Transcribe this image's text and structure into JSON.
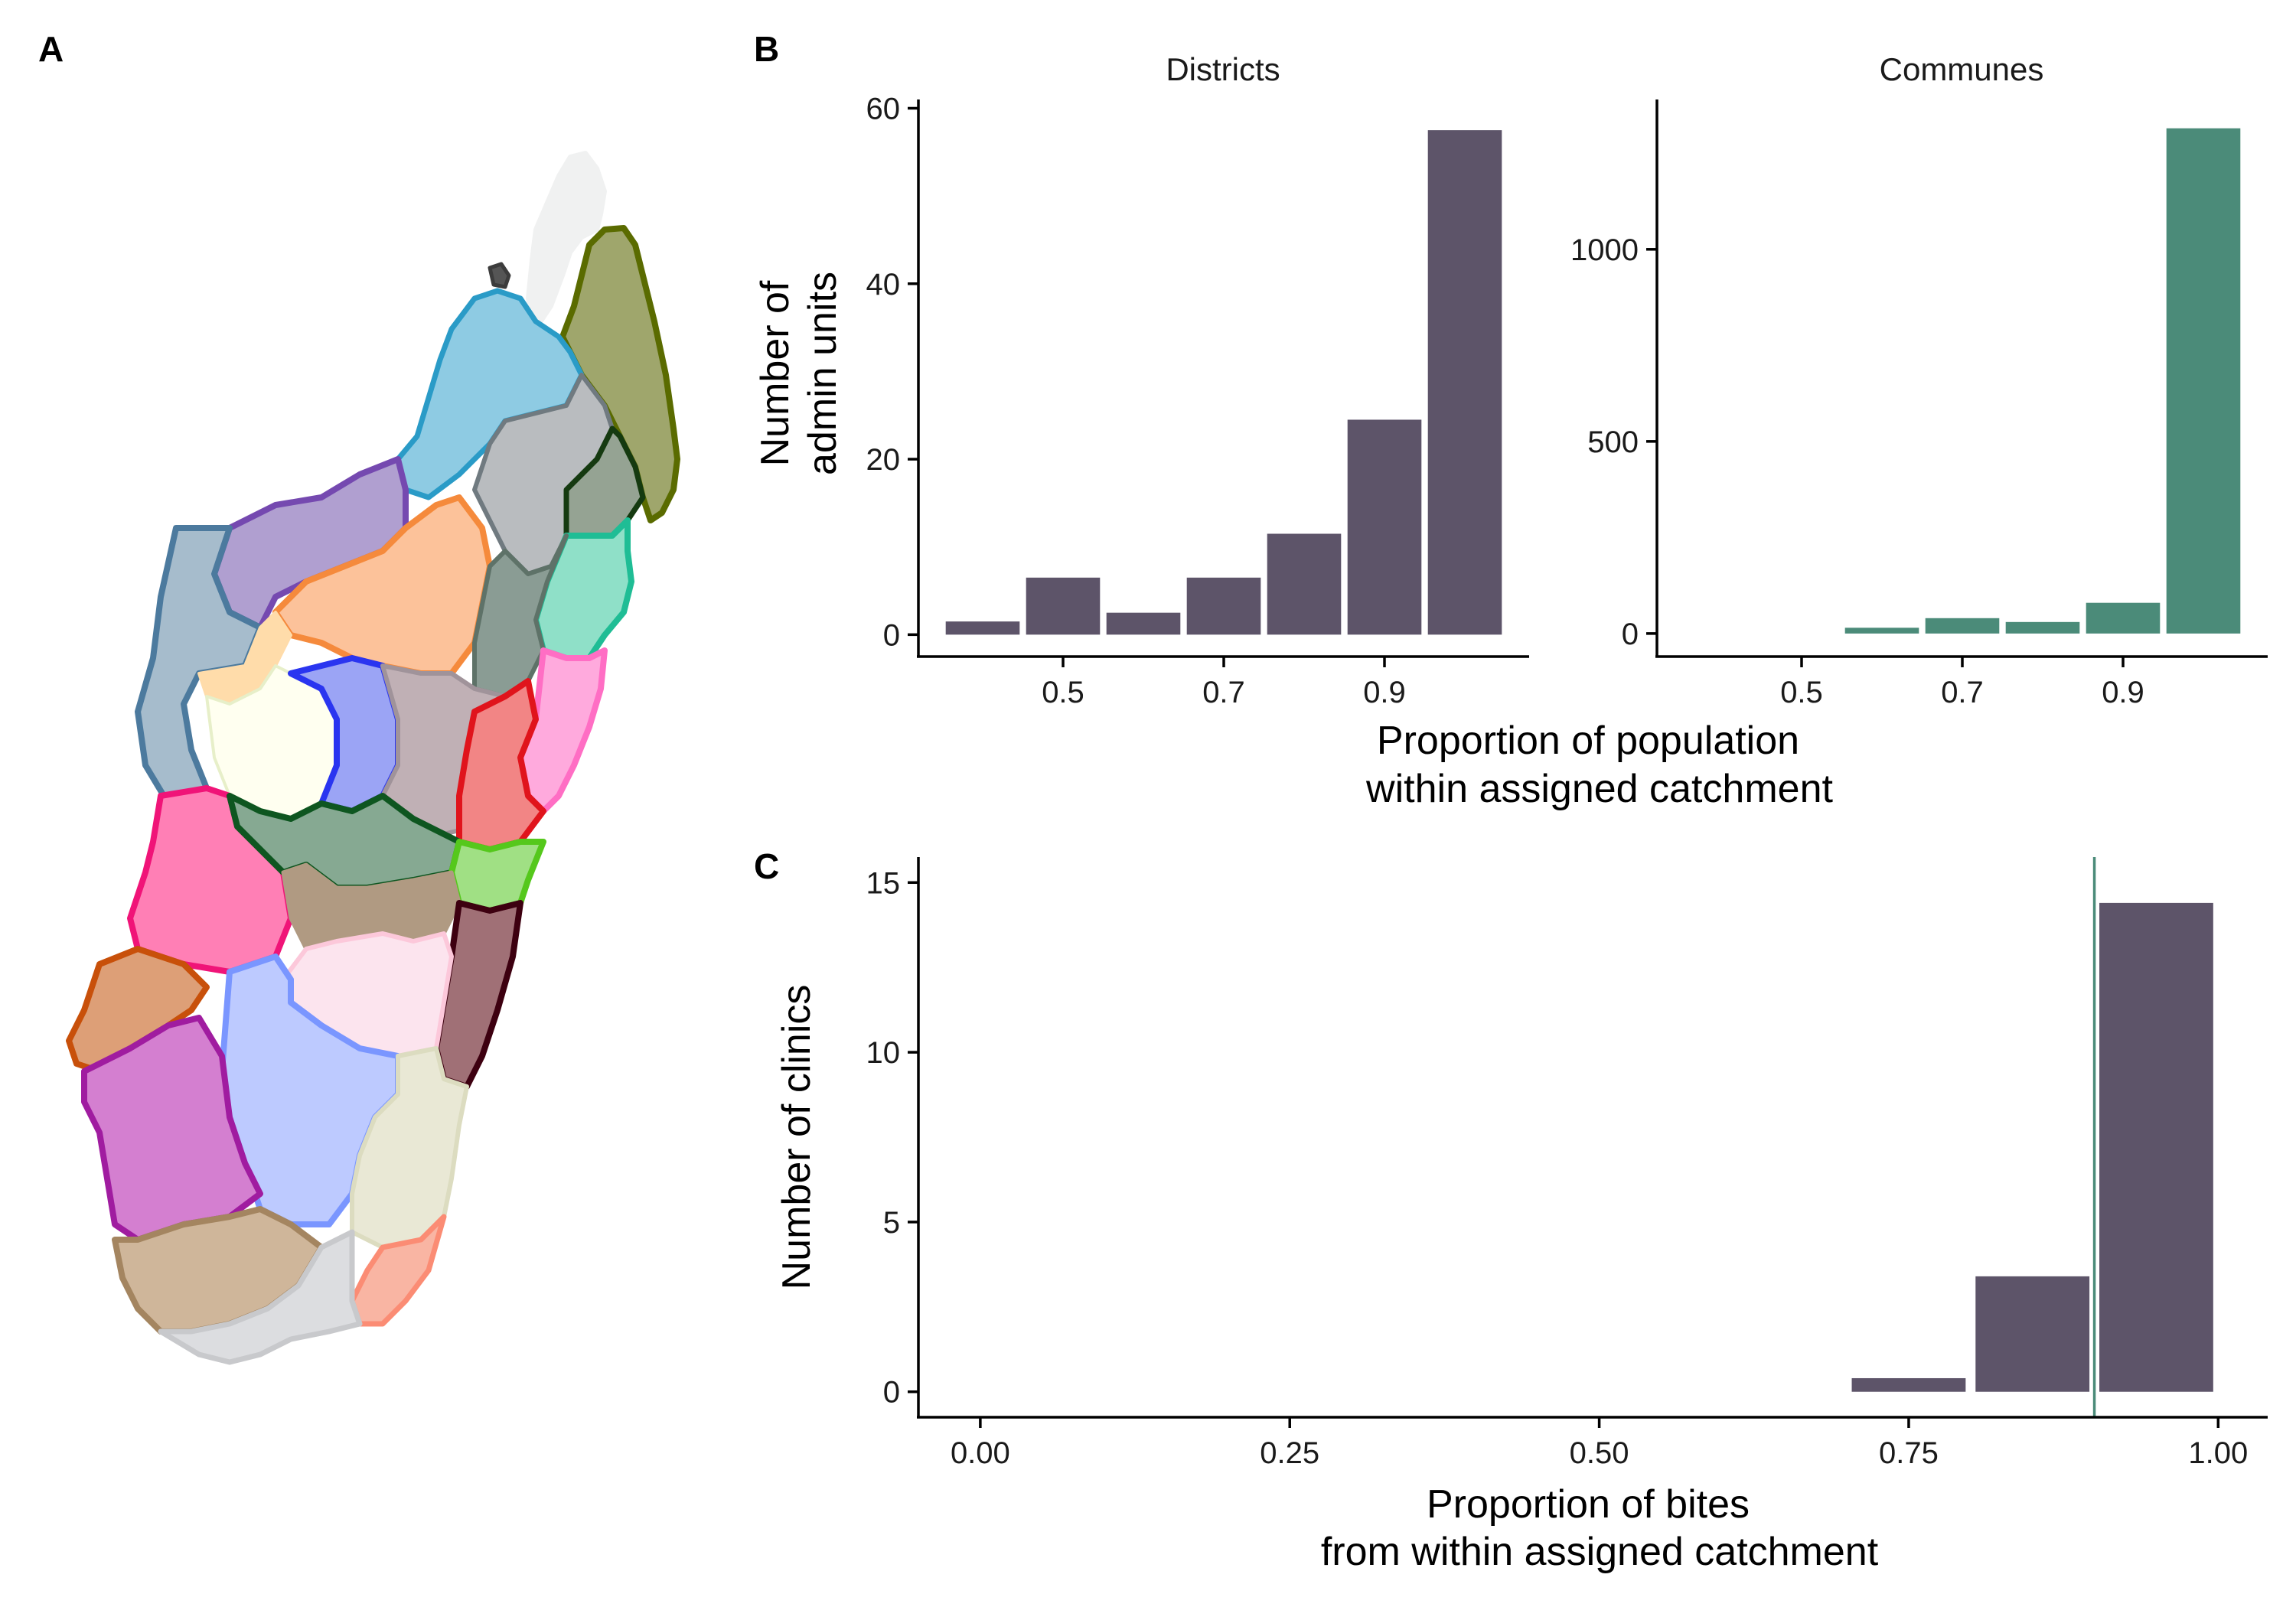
{
  "panels": {
    "a": "A",
    "b": "B",
    "c": "C"
  },
  "map": {
    "regions": [
      {
        "fill": "#f0f1f1",
        "stroke": "#f0f1f1"
      },
      {
        "fill": "#9fa66c",
        "stroke": "#5a6b00"
      },
      {
        "fill": "#8ecbe3",
        "stroke": "#2a9bc7"
      },
      {
        "fill": "#b9bcbf",
        "stroke": "#707a80"
      },
      {
        "fill": "#95a393",
        "stroke": "#153a10"
      },
      {
        "fill": "#8fe0c8",
        "stroke": "#1fbd95"
      },
      {
        "fill": "#b09fd0",
        "stroke": "#7549b0"
      },
      {
        "fill": "#a6bccc",
        "stroke": "#4c7a9e"
      },
      {
        "fill": "#fcc29a",
        "stroke": "#f58a3c"
      },
      {
        "fill": "#8a9c94",
        "stroke": "#5e7268"
      },
      {
        "fill": "#ffdcaa",
        "stroke": "#ffdcaa"
      },
      {
        "fill": "#fffff0",
        "stroke": "#e7efc9"
      },
      {
        "fill": "#9ba4f5",
        "stroke": "#2a35f0"
      },
      {
        "fill": "#c0b0b5",
        "stroke": "#a0939a"
      },
      {
        "fill": "#ffaadd",
        "stroke": "#ff6ec4"
      },
      {
        "fill": "#f28585",
        "stroke": "#e0141c"
      },
      {
        "fill": "#ff7fb5",
        "stroke": "#f01478"
      },
      {
        "fill": "#86a992",
        "stroke": "#0e5620"
      },
      {
        "fill": "#a0e084",
        "stroke": "#55c81c"
      },
      {
        "fill": "#b09a82",
        "stroke": "#b09a82"
      },
      {
        "fill": "#a07076",
        "stroke": "#3d0010"
      },
      {
        "fill": "#fce4ee",
        "stroke": "#fcc8da"
      },
      {
        "fill": "#dd9f77",
        "stroke": "#c8500a"
      },
      {
        "fill": "#bdcaff",
        "stroke": "#7a96ff"
      },
      {
        "fill": "#d47fd0",
        "stroke": "#a01ca0"
      },
      {
        "fill": "#e9e8d5",
        "stroke": "#dcdcc0"
      },
      {
        "fill": "#cfb69a",
        "stroke": "#a48560"
      },
      {
        "fill": "#f9b5a3",
        "stroke": "#fb8c74"
      },
      {
        "fill": "#dcdde0",
        "stroke": "#c8c9cc"
      },
      {
        "fill": "#555555",
        "stroke": "#3c3c3c"
      }
    ]
  },
  "panel_b": {
    "x_title_line1": "Proportion of population",
    "x_title_line2": "within assigned catchment",
    "y_title_line1": "Number of",
    "y_title_line2": "admin units"
  },
  "panel_c": {
    "x_title_line1": "Proportion of bites",
    "x_title_line2": "from within assigned catchment",
    "y_title": "Number of clinics"
  },
  "chart_data": [
    {
      "id": "districts",
      "type": "bar",
      "title": "Districts",
      "color": "#5d5469",
      "x": [
        0.4,
        0.5,
        0.6,
        0.7,
        0.8,
        0.9,
        1.0
      ],
      "values": [
        1.5,
        6.5,
        2.5,
        6.5,
        11.5,
        24.5,
        57.5
      ],
      "xlim": [
        0.32,
        1.08
      ],
      "ylim": [
        -2.5,
        61
      ],
      "xticks": [
        0.5,
        0.7,
        0.9
      ],
      "xtick_labels": [
        "0.5",
        "0.7",
        "0.9"
      ],
      "yticks": [
        0,
        20,
        40,
        60
      ],
      "ytick_labels": [
        "0",
        "20",
        "40",
        "60"
      ]
    },
    {
      "id": "communes",
      "type": "bar",
      "title": "Communes",
      "color": "#4b8b79",
      "x": [
        0.4,
        0.5,
        0.6,
        0.7,
        0.8,
        0.9,
        1.0
      ],
      "values": [
        0,
        0,
        15,
        40,
        30,
        80,
        1315
      ],
      "xlim": [
        0.32,
        1.08
      ],
      "ylim": [
        -60,
        1390
      ],
      "xticks": [
        0.5,
        0.7,
        0.9
      ],
      "xtick_labels": [
        "0.5",
        "0.7",
        "0.9"
      ],
      "yticks": [
        0,
        500,
        1000
      ],
      "ytick_labels": [
        "0",
        "500",
        "1000"
      ]
    },
    {
      "id": "clinics",
      "type": "bar",
      "title": "",
      "color": "#5d5469",
      "x": [
        0.75,
        0.85,
        0.95
      ],
      "values": [
        0.4,
        3.4,
        14.4
      ],
      "vline": {
        "x": 0.9,
        "color": "#4b8b79"
      },
      "xlim": [
        -0.05,
        1.04
      ],
      "ylim": [
        -0.75,
        15.75
      ],
      "xticks": [
        0,
        0.25,
        0.5,
        0.75,
        1.0
      ],
      "xtick_labels": [
        "0.00",
        "0.25",
        "0.50",
        "0.75",
        "1.00"
      ],
      "yticks": [
        0,
        5,
        10,
        15
      ],
      "ytick_labels": [
        "0",
        "5",
        "10",
        "15"
      ]
    }
  ]
}
